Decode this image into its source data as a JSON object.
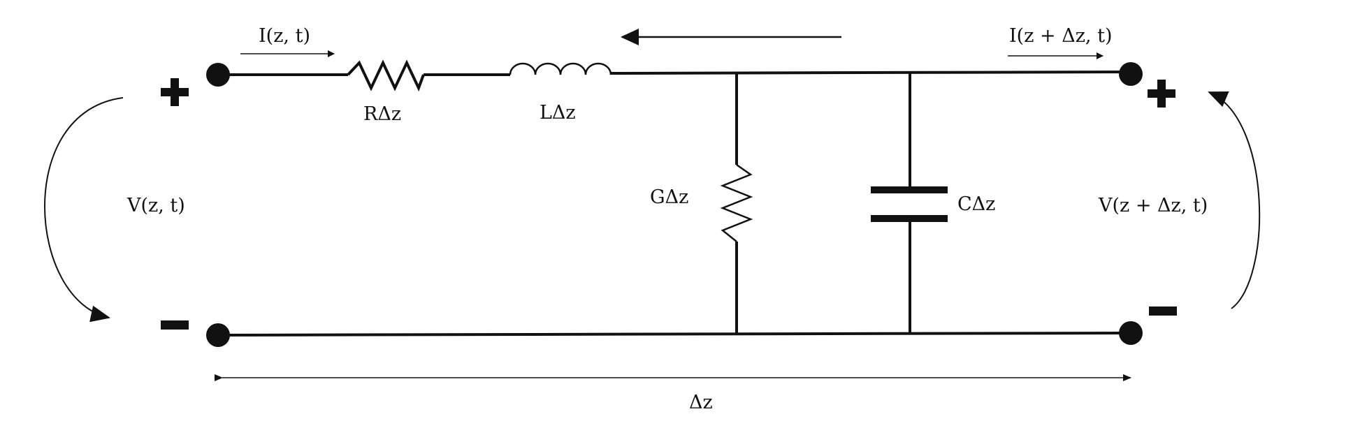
{
  "diagram": {
    "type": "circuit",
    "subject": "transmission line segment lumped-element model",
    "colors": {
      "stroke": "#111111",
      "background": "#ffffff"
    },
    "labels": {
      "current_in": "I(z, t)",
      "current_out": "I(z + Δz, t)",
      "resistor": "RΔz",
      "inductor": "LΔz",
      "conductance": "GΔz",
      "capacitor": "CΔz",
      "voltage_in": "V(z, t)",
      "voltage_out": "V(z + Δz, t)",
      "length": "Δz",
      "plus_left": "+",
      "minus_left": "−",
      "plus_right": "+",
      "minus_right": "−"
    }
  }
}
